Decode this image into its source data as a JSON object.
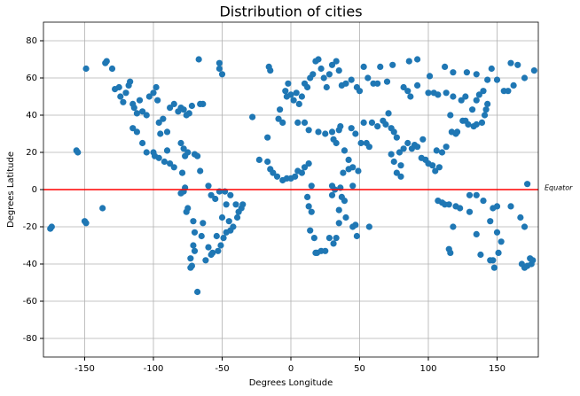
{
  "chart_data": {
    "type": "scatter",
    "title": "Distribution of cities",
    "x_label": "Degrees Longitude",
    "y_label": "Degrees Latitude",
    "color": "#1f77b4",
    "grid": true,
    "xlim": [
      -180,
      180
    ],
    "ylim": [
      -90,
      90
    ],
    "xticks": [
      -150,
      -100,
      -50,
      0,
      50,
      100,
      150
    ],
    "yticks": [
      -80,
      -60,
      -40,
      -20,
      0,
      20,
      40,
      60,
      80
    ],
    "hline": {
      "y": 0,
      "color": "red",
      "label": "Equator"
    },
    "x": [
      -175,
      -174,
      -156,
      -155,
      -150,
      -149,
      -149,
      -137,
      -135,
      -134,
      -130,
      -128,
      -125,
      -124,
      -122,
      -120,
      -118,
      -117,
      -115,
      -114,
      -112,
      -110,
      -108,
      -105,
      -103,
      -100,
      -98,
      -97,
      -96,
      -95,
      -93,
      -90,
      -88,
      -85,
      -82,
      -80,
      -78,
      -76,
      -74,
      -72,
      -66,
      -64,
      -67,
      -52,
      -52,
      -50,
      -115,
      -112,
      -108,
      -105,
      -100,
      -99,
      -96,
      -92,
      -90,
      -88,
      -85,
      -80,
      -78,
      -77,
      -75,
      -70,
      -68,
      -79,
      -77,
      -78,
      -80,
      -75,
      -76,
      -71,
      -70,
      -71,
      -73,
      -72,
      -73,
      -70,
      -68,
      -65,
      -64,
      -66,
      -60,
      -58,
      -55,
      -52,
      -48,
      -47,
      -44,
      -40,
      -38,
      -35,
      -42,
      -44,
      -47,
      -49,
      -51,
      -53,
      -57,
      -58,
      -60,
      -62,
      -54,
      -50,
      -45,
      -39,
      -36,
      -28,
      -23,
      -17,
      -16,
      -15,
      -9,
      -8,
      -6,
      -4,
      -3,
      -2,
      0,
      2,
      4,
      6,
      8,
      10,
      12,
      14,
      16,
      18,
      20,
      22,
      24,
      26,
      28,
      30,
      33,
      35,
      37,
      40,
      44,
      48,
      50,
      53,
      56,
      60,
      63,
      65,
      70,
      74,
      -17,
      -15,
      -13,
      -10,
      -6,
      -3,
      0,
      3,
      5,
      8,
      10,
      13,
      15,
      12,
      13,
      15,
      14,
      17,
      18,
      19,
      22,
      25,
      28,
      31,
      33,
      35,
      35,
      37,
      39,
      40,
      45,
      47,
      48,
      57,
      30,
      30,
      32,
      36,
      38,
      42,
      45,
      45,
      49,
      5,
      10,
      13,
      20,
      25,
      30,
      31,
      33,
      35,
      36,
      39,
      42,
      44,
      47,
      51,
      55,
      57,
      53,
      59,
      63,
      67,
      69,
      71,
      73,
      75,
      77,
      79,
      80,
      75,
      73,
      77,
      80,
      82,
      85,
      88,
      90,
      92,
      95,
      96,
      98,
      100,
      103,
      105,
      106,
      108,
      110,
      113,
      116,
      117,
      120,
      121,
      125,
      127,
      129,
      133,
      135,
      139,
      141,
      142,
      143,
      110,
      107,
      112,
      115,
      120,
      123,
      130,
      135,
      140,
      147,
      150,
      160,
      167,
      170,
      172,
      174,
      172,
      175,
      176,
      170,
      168,
      151,
      153,
      147,
      145,
      138,
      135,
      130,
      115,
      118,
      116,
      150,
      145,
      148,
      82,
      85,
      87,
      92,
      100,
      104,
      107,
      113,
      118,
      124,
      127,
      132,
      135,
      137,
      140,
      143,
      150,
      155,
      158,
      162,
      170,
      177,
      165,
      160,
      146,
      135,
      128,
      118,
      112,
      101,
      92,
      86
    ],
    "values": [
      -21,
      -20,
      21,
      20,
      -17,
      -18,
      65,
      -10,
      68,
      69,
      65,
      54,
      55,
      50,
      47,
      52,
      56,
      58,
      46,
      44,
      41,
      48,
      42,
      40,
      50,
      52,
      55,
      48,
      36,
      30,
      38,
      31,
      44,
      46,
      42,
      44,
      43,
      40,
      41,
      45,
      46,
      46,
      70,
      68,
      65,
      62,
      33,
      31,
      25,
      20,
      20,
      18,
      17,
      15,
      21,
      14,
      12,
      25,
      22,
      18,
      20,
      19,
      18,
      9,
      1,
      -1,
      -2,
      -10,
      -12,
      -17,
      -23,
      -30,
      -37,
      -41,
      -42,
      -33,
      -55,
      -25,
      -18,
      10,
      2,
      -3,
      -5,
      -1,
      -1,
      -8,
      -3,
      -8,
      -12,
      -8,
      -20,
      -22,
      -23,
      -26,
      -30,
      -33,
      -34,
      -35,
      -31,
      -38,
      -25,
      -15,
      -17,
      -15,
      -10,
      39,
      16,
      28,
      66,
      64,
      38,
      43,
      36,
      53,
      50,
      57,
      51,
      48,
      52,
      46,
      50,
      57,
      55,
      60,
      62,
      69,
      70,
      65,
      60,
      55,
      62,
      67,
      69,
      64,
      56,
      57,
      59,
      55,
      53,
      66,
      60,
      57,
      57,
      66,
      58,
      67,
      15,
      11,
      9,
      7,
      5,
      6,
      6,
      7,
      10,
      9,
      12,
      14,
      2,
      -4,
      -9,
      -12,
      -22,
      -26,
      -34,
      -34,
      -33,
      -33,
      -26,
      -29,
      -26,
      -18,
      -11,
      -4,
      -6,
      -15,
      -20,
      -19,
      -25,
      -20,
      -3,
      2,
      0,
      1,
      9,
      11,
      12,
      2,
      10,
      36,
      36,
      32,
      31,
      30,
      31,
      27,
      25,
      32,
      34,
      21,
      16,
      33,
      30,
      25,
      25,
      23,
      36,
      36,
      34,
      37,
      35,
      41,
      33,
      31,
      28,
      20,
      13,
      15,
      19,
      9,
      7,
      22,
      25,
      22,
      24,
      23,
      17,
      27,
      16,
      14,
      13,
      10,
      21,
      12,
      20,
      23,
      40,
      31,
      30,
      31,
      37,
      37,
      35,
      34,
      35,
      36,
      40,
      43,
      46,
      -7,
      -6,
      -8,
      -8,
      -9,
      -10,
      -3,
      -3,
      -6,
      -10,
      -9,
      -9,
      -15,
      -20,
      3,
      -37,
      -41,
      -40,
      -38,
      -42,
      -40,
      -34,
      -28,
      -38,
      -38,
      -35,
      -24,
      -12,
      -32,
      -20,
      -34,
      -23,
      -17,
      -42,
      55,
      53,
      50,
      56,
      52,
      52,
      51,
      52,
      50,
      48,
      50,
      43,
      48,
      51,
      53,
      59,
      59,
      53,
      53,
      56,
      60,
      64,
      67,
      68,
      65,
      62,
      63,
      63,
      66,
      61,
      70,
      69
    ]
  }
}
